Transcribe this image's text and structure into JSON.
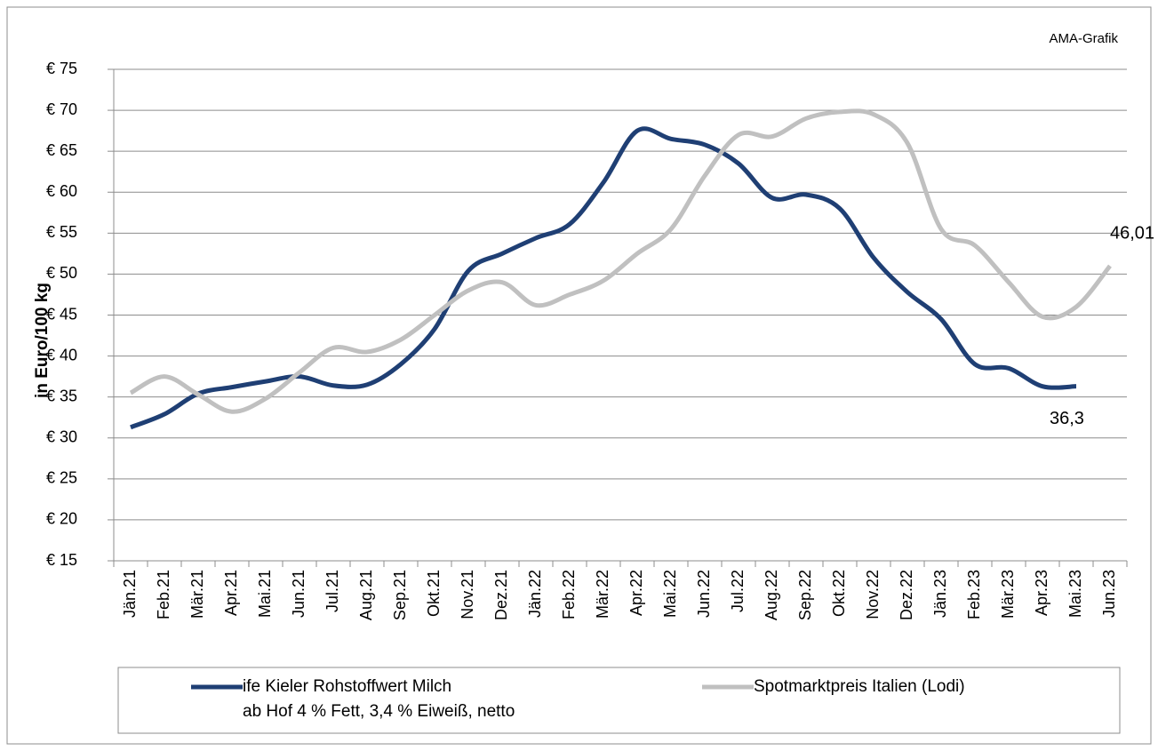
{
  "chart_data": {
    "type": "line",
    "source": "AMA-Grafik",
    "y_label": "in Euro/100 kg",
    "categories": [
      "Jän.21",
      "Feb.21",
      "Mär.21",
      "Apr.21",
      "Mai.21",
      "Jun.21",
      "Jul.21",
      "Aug.21",
      "Sep.21",
      "Okt.21",
      "Nov.21",
      "Dez.21",
      "Jän.22",
      "Feb.22",
      "Mär.22",
      "Apr.22",
      "Mai.22",
      "Jun.22",
      "Jul.22",
      "Aug.22",
      "Sep.22",
      "Okt.22",
      "Nov.22",
      "Dez.22",
      "Jän.23",
      "Feb.23",
      "Mär.23",
      "Apr.23",
      "Mai.23",
      "Jun.23"
    ],
    "series": [
      {
        "name": "ife Kieler Rohstoffwert Milch",
        "note": "ab Hof 4 % Fett, 3,4 % Eiweiß, netto",
        "color": "#1f3f74",
        "values": [
          31.3,
          32.9,
          35.4,
          36.2,
          36.9,
          37.5,
          36.4,
          36.5,
          39,
          43.3,
          50.4,
          52.5,
          54.4,
          56.1,
          61.2,
          67.5,
          66.5,
          65.8,
          63.5,
          59.3,
          59.7,
          58,
          52,
          47.8,
          44.5,
          39,
          38.5,
          36.3,
          36.3,
          null
        ],
        "value_labels": [
          null,
          null,
          null,
          null,
          null,
          null,
          null,
          null,
          null,
          null,
          null,
          null,
          null,
          null,
          null,
          null,
          null,
          null,
          null,
          null,
          null,
          null,
          null,
          null,
          null,
          null,
          null,
          null,
          "36,3",
          null
        ]
      },
      {
        "name": "Spotmarktpreis Italien (Lodi)",
        "color": "#c0c0c0",
        "values": [
          35.5,
          37.5,
          35.3,
          33.2,
          34.8,
          38,
          41,
          40.5,
          42,
          45,
          48,
          49,
          46.2,
          47.5,
          49.2,
          52.5,
          55.5,
          62,
          67,
          66.8,
          69,
          69.8,
          69.5,
          66,
          55.5,
          53.5,
          49,
          44.8,
          46.01,
          51
        ],
        "value_labels": [
          null,
          null,
          null,
          null,
          null,
          null,
          null,
          null,
          null,
          null,
          null,
          null,
          null,
          null,
          null,
          null,
          null,
          null,
          null,
          null,
          null,
          null,
          null,
          null,
          null,
          null,
          null,
          null,
          "46,01",
          null
        ]
      }
    ],
    "ylim": [
      15,
      75
    ],
    "yticks": [
      {
        "value": 15,
        "label": "€ 15"
      },
      {
        "value": 20,
        "label": "€ 20"
      },
      {
        "value": 25,
        "label": "€ 25"
      },
      {
        "value": 30,
        "label": "€ 30"
      },
      {
        "value": 35,
        "label": "€ 35"
      },
      {
        "value": 40,
        "label": "€ 40"
      },
      {
        "value": 45,
        "label": "€ 45"
      },
      {
        "value": 50,
        "label": "€ 50"
      },
      {
        "value": 55,
        "label": "€ 55"
      },
      {
        "value": 60,
        "label": "€ 60"
      },
      {
        "value": 65,
        "label": "€ 65"
      },
      {
        "value": 70,
        "label": "€ 70"
      },
      {
        "value": 75,
        "label": "€ 75"
      }
    ],
    "grid": true
  }
}
